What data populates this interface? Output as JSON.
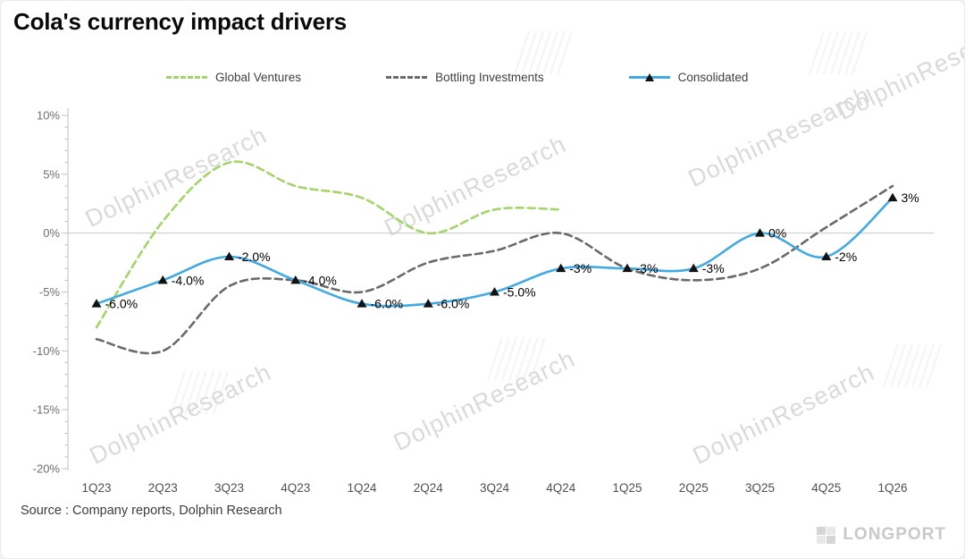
{
  "title": "Cola's currency impact drivers",
  "source_note": "Source : Company reports, Dolphin Research",
  "watermark_text": "DolphinResearch",
  "brand_logo": "LONGPORT",
  "colors": {
    "global_ventures": "#a5d46a",
    "bottling_investments": "#6a6a6a",
    "consolidated": "#42a9e2",
    "marker": "#121212",
    "axis": "#c2c2c2",
    "zero_line": "#c9c9c9"
  },
  "legend": [
    {
      "label": "Global Ventures",
      "color": "#a5d46a",
      "style": "dashed"
    },
    {
      "label": "Bottling Investments",
      "color": "#6a6a6a",
      "style": "dashed"
    },
    {
      "label": "Consolidated",
      "color": "#42a9e2",
      "style": "solid"
    }
  ],
  "chart_data": {
    "type": "line",
    "title": "Cola's currency impact drivers",
    "categories": [
      "1Q23",
      "2Q23",
      "3Q23",
      "4Q23",
      "1Q24",
      "2Q24",
      "3Q24",
      "4Q24",
      "1Q25",
      "2Q25",
      "3Q25",
      "4Q25",
      "1Q26"
    ],
    "ylim": [
      -20,
      10
    ],
    "yticks": [
      10,
      5,
      0,
      -5,
      -10,
      -15,
      -20
    ],
    "ytick_suffix": "%",
    "grid": "zero-line-only",
    "legend_position": "top",
    "series": [
      {
        "name": "Global Ventures",
        "color": "#a5d46a",
        "dash": true,
        "values": [
          -8,
          1,
          6,
          4,
          3,
          0,
          2,
          2,
          null,
          null,
          null,
          null,
          null
        ]
      },
      {
        "name": "Bottling Investments",
        "color": "#6a6a6a",
        "dash": true,
        "values": [
          -9,
          -10,
          -4.5,
          -4,
          -5,
          -2.5,
          -1.5,
          0,
          -3,
          -4,
          -3,
          0.5,
          4
        ]
      },
      {
        "name": "Consolidated",
        "color": "#42a9e2",
        "dash": false,
        "marker": "triangle",
        "values": [
          -6,
          -4,
          -2,
          -4,
          -6,
          -6,
          -5,
          -3,
          -3,
          -3,
          0,
          -2,
          3
        ],
        "point_labels": [
          "-6.0%",
          "-4.0%",
          "-2.0%",
          "-4.0%",
          "-6.0%",
          "-6.0%",
          "-5.0%",
          "-3%",
          "-3%",
          "-3%",
          "0%",
          "-2%",
          "3%"
        ]
      }
    ]
  }
}
